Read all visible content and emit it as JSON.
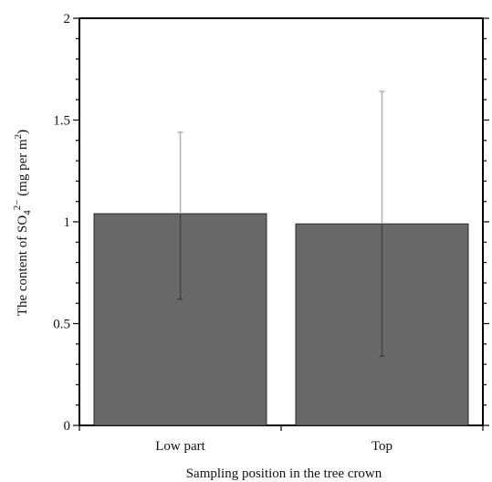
{
  "chart_data": {
    "type": "bar",
    "categories": [
      "Low part",
      "Top"
    ],
    "values": [
      1.04,
      0.99
    ],
    "error_upper": [
      1.44,
      1.64
    ],
    "error_lower": [
      0.62,
      0.34
    ],
    "title": "",
    "xlabel": "Sampling position in the tree crown",
    "ylabel": {
      "prefix": "The content of SO",
      "sub": "4",
      "sup": "2−",
      "mid": " (mg per m",
      "sup2": "2",
      "suffix": ")"
    },
    "ylim": [
      0,
      2
    ],
    "yticks": [
      "0",
      "0.5",
      "1",
      "1.5",
      "2"
    ],
    "yminor_step": 0.1,
    "grid": false,
    "bar_color": "#696969",
    "error_color": "#444444"
  }
}
